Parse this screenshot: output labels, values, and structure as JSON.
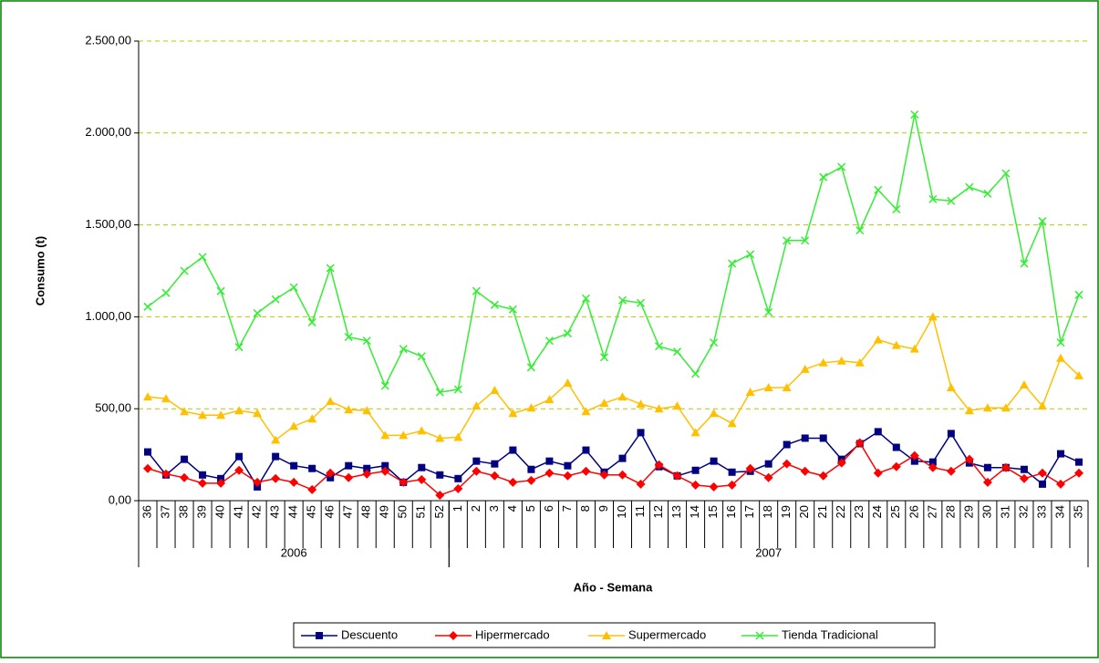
{
  "chart_data": {
    "type": "line",
    "y_axis_title": "Consumo (t)",
    "x_axis_title": "Año - Semana",
    "groups": [
      {
        "label": "2006",
        "categories": [
          "36",
          "37",
          "38",
          "39",
          "40",
          "41",
          "42",
          "43",
          "44",
          "45",
          "46",
          "47",
          "48",
          "49",
          "50",
          "51",
          "52"
        ]
      },
      {
        "label": "2007",
        "categories": [
          "1",
          "2",
          "3",
          "4",
          "5",
          "6",
          "7",
          "8",
          "9",
          "10",
          "11",
          "12",
          "13",
          "14",
          "15",
          "16",
          "17",
          "18",
          "19",
          "20",
          "21",
          "22",
          "23",
          "24",
          "25",
          "26",
          "27",
          "28",
          "29",
          "30",
          "31",
          "32",
          "33",
          "34",
          "35"
        ]
      }
    ],
    "ylim": [
      0,
      2500
    ],
    "yticks": [
      {
        "value": 0,
        "label": "0,00"
      },
      {
        "value": 500,
        "label": "500,00"
      },
      {
        "value": 1000,
        "label": "1.000,00"
      },
      {
        "value": 1500,
        "label": "1.500,00"
      },
      {
        "value": 2000,
        "label": "2.000,00"
      },
      {
        "value": 2500,
        "label": "2.500,00"
      }
    ],
    "grid": true,
    "legend": "bottom",
    "series": [
      {
        "name": "Descuento",
        "color": "#000080",
        "marker": "square",
        "values": [
          265,
          140,
          225,
          140,
          120,
          240,
          75,
          240,
          190,
          175,
          125,
          190,
          175,
          190,
          100,
          180,
          140,
          120,
          215,
          200,
          275,
          170,
          215,
          190,
          275,
          155,
          230,
          370,
          185,
          135,
          165,
          215,
          155,
          160,
          200,
          305,
          340,
          340,
          225,
          310,
          375,
          290,
          215,
          210,
          365,
          205,
          180,
          180,
          170,
          90,
          255,
          210
        ]
      },
      {
        "name": "Hipermercado",
        "color": "#ff0000",
        "marker": "diamond",
        "values": [
          175,
          145,
          125,
          95,
          95,
          165,
          100,
          120,
          100,
          60,
          150,
          125,
          145,
          160,
          100,
          115,
          30,
          65,
          160,
          135,
          100,
          110,
          150,
          135,
          160,
          140,
          140,
          90,
          195,
          135,
          85,
          75,
          85,
          175,
          125,
          200,
          160,
          135,
          205,
          315,
          150,
          185,
          245,
          180,
          160,
          225,
          100,
          180,
          120,
          150,
          90,
          150
        ]
      },
      {
        "name": "Supermercado",
        "color": "#ffc000",
        "marker": "triangle",
        "values": [
          565,
          555,
          485,
          465,
          465,
          490,
          475,
          330,
          405,
          445,
          540,
          495,
          490,
          355,
          355,
          380,
          340,
          345,
          515,
          600,
          475,
          505,
          550,
          640,
          485,
          530,
          565,
          525,
          500,
          515,
          370,
          475,
          420,
          590,
          615,
          615,
          715,
          750,
          760,
          750,
          875,
          845,
          825,
          1000,
          615,
          490,
          505,
          505,
          630,
          515,
          775,
          680
        ]
      },
      {
        "name": "Tienda Tradicional",
        "color": "#33ee33",
        "marker": "x",
        "values": [
          1055,
          1130,
          1250,
          1325,
          1140,
          835,
          1020,
          1095,
          1160,
          970,
          1265,
          890,
          870,
          625,
          825,
          785,
          590,
          605,
          1140,
          1065,
          1040,
          725,
          870,
          910,
          1100,
          780,
          1090,
          1075,
          840,
          810,
          690,
          860,
          1290,
          1340,
          1025,
          1415,
          1415,
          1760,
          1815,
          1470,
          1690,
          1585,
          2100,
          1640,
          1630,
          1705,
          1670,
          1780,
          1290,
          1520,
          860,
          1120
        ]
      }
    ]
  }
}
